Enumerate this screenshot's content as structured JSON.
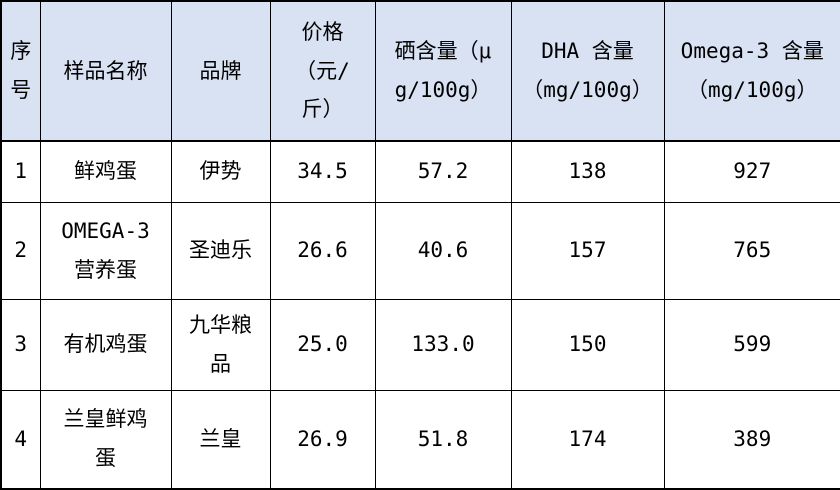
{
  "table": {
    "columns": [
      {
        "key": "index",
        "label": "序\n号"
      },
      {
        "key": "name",
        "label": "样品名称"
      },
      {
        "key": "brand",
        "label": "品牌"
      },
      {
        "key": "price",
        "label": "价格\n（元/\n斤）"
      },
      {
        "key": "selenium",
        "label": "硒含量（μ\ng/100g）"
      },
      {
        "key": "dha",
        "label": "DHA 含量\n（mg/100g）"
      },
      {
        "key": "omega3",
        "label": "Omega-3 含量\n（mg/100g）"
      }
    ],
    "rows": [
      {
        "index": "1",
        "name": "鲜鸡蛋",
        "brand": "伊势",
        "price": "34.5",
        "selenium": "57.2",
        "dha": "138",
        "omega3": "927"
      },
      {
        "index": "2",
        "name": "OMEGA-3\n营养蛋",
        "brand": "圣迪乐",
        "price": "26.6",
        "selenium": "40.6",
        "dha": "157",
        "omega3": "765"
      },
      {
        "index": "3",
        "name": "有机鸡蛋",
        "brand": "九华粮\n品",
        "price": "25.0",
        "selenium": "133.0",
        "dha": "150",
        "omega3": "599"
      },
      {
        "index": "4",
        "name": "兰皇鲜鸡\n蛋",
        "brand": "兰皇",
        "price": "26.9",
        "selenium": "51.8",
        "dha": "174",
        "omega3": "389"
      }
    ],
    "colors": {
      "header_bg": "#d9e2f3",
      "border": "#000000",
      "text": "#000000",
      "body_bg": "#ffffff"
    }
  }
}
